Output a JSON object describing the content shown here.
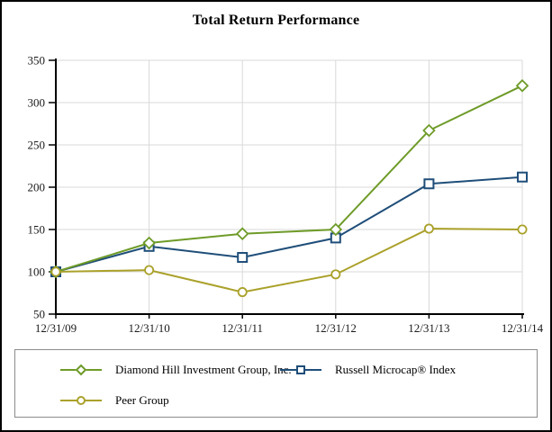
{
  "chart_data": {
    "type": "line",
    "title": "Total Return Performance",
    "categories": [
      "12/31/09",
      "12/31/10",
      "12/31/11",
      "12/31/12",
      "12/31/13",
      "12/31/14"
    ],
    "series": [
      {
        "name": "Diamond Hill Investment Group, Inc.",
        "marker": "diamond",
        "color": "#6e9b28",
        "values": [
          100,
          134,
          145,
          150,
          267,
          320
        ]
      },
      {
        "name": "Russell Microcap® Index",
        "marker": "square",
        "color": "#1f4e79",
        "values": [
          100,
          130,
          117,
          140,
          204,
          212
        ]
      },
      {
        "name": "Peer Group",
        "marker": "circle",
        "color": "#aaa12a",
        "values": [
          100,
          102,
          76,
          97,
          151,
          150
        ]
      }
    ],
    "ylim": [
      50,
      350
    ],
    "yticks": [
      50,
      100,
      150,
      200,
      250,
      300,
      350
    ],
    "grid": true,
    "legend_position": "bottom",
    "axis_color": "#000000",
    "grid_color": "#d9d9d9",
    "tick_label_color": "#1a1a1a",
    "marker_fill": "#ffffff"
  }
}
